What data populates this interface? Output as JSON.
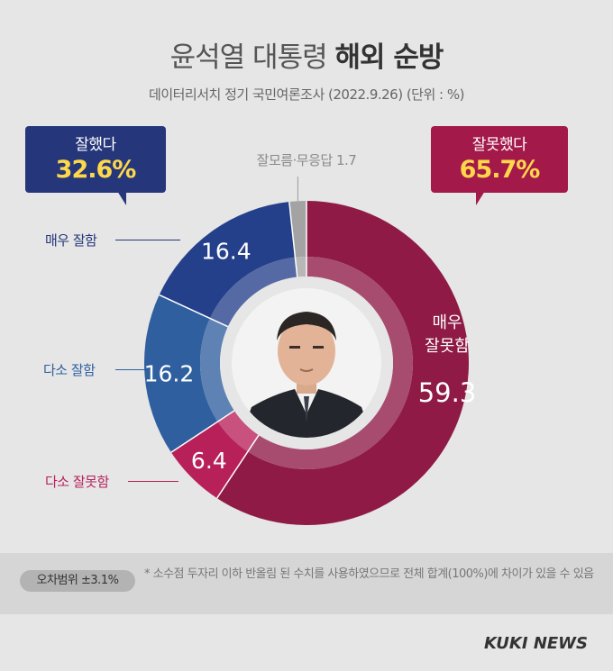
{
  "header": {
    "title_light": "윤석열 대통령",
    "title_bold": "해외 순방",
    "subtitle": "데이터리서치 정기 국민여론조사 (2022.9.26)  (단위 : %)"
  },
  "summary": {
    "good_label": "잘했다",
    "good_value": "32.6%",
    "bad_label": "잘못했다",
    "bad_value": "65.7%",
    "dk_label": "잘모름·무응답 1.7"
  },
  "chart_data": {
    "type": "pie",
    "title": "윤석열 대통령 해외 순방",
    "unit": "%",
    "slices": [
      {
        "label": "매우 잘못함",
        "value": 59.3,
        "value_text": "59.3",
        "color": "#8e1a45"
      },
      {
        "label": "다소 잘못함",
        "value": 6.4,
        "value_text": "6.4",
        "color": "#b8205a"
      },
      {
        "label": "다소 잘함",
        "value": 16.2,
        "value_text": "16.2",
        "color": "#2f5f9e"
      },
      {
        "label": "매우 잘함",
        "value": 16.4,
        "value_text": "16.4",
        "color": "#25408a"
      },
      {
        "label": "잘모름·무응답",
        "value": 1.7,
        "value_text": "",
        "color": "#a3a3a3"
      }
    ],
    "groups": [
      {
        "label": "잘했다",
        "value": 32.6,
        "color": "#26367a"
      },
      {
        "label": "잘못했다",
        "value": 65.7,
        "color": "#a3194a"
      },
      {
        "label": "잘모름·무응답",
        "value": 1.7,
        "color": "#a3a3a3"
      }
    ]
  },
  "labels": {
    "very_good": "매우 잘함",
    "some_good": "다소 잘함",
    "some_bad": "다소 잘못함",
    "very_bad_line1": "매우",
    "very_bad_line2": "잘못함"
  },
  "footer": {
    "margin_of_error": "오차범위 ±3.1%",
    "footnote": "* 소수점 두자리 이하 반올림 된 수치를 사용하였으므로 전체 합계(100%)에 차이가 있을 수 있음",
    "logo": "KUKI NEWS"
  },
  "colors": {
    "good_dark": "#26367a",
    "bad_dark": "#a3194a",
    "highlight": "#ffd84a"
  }
}
